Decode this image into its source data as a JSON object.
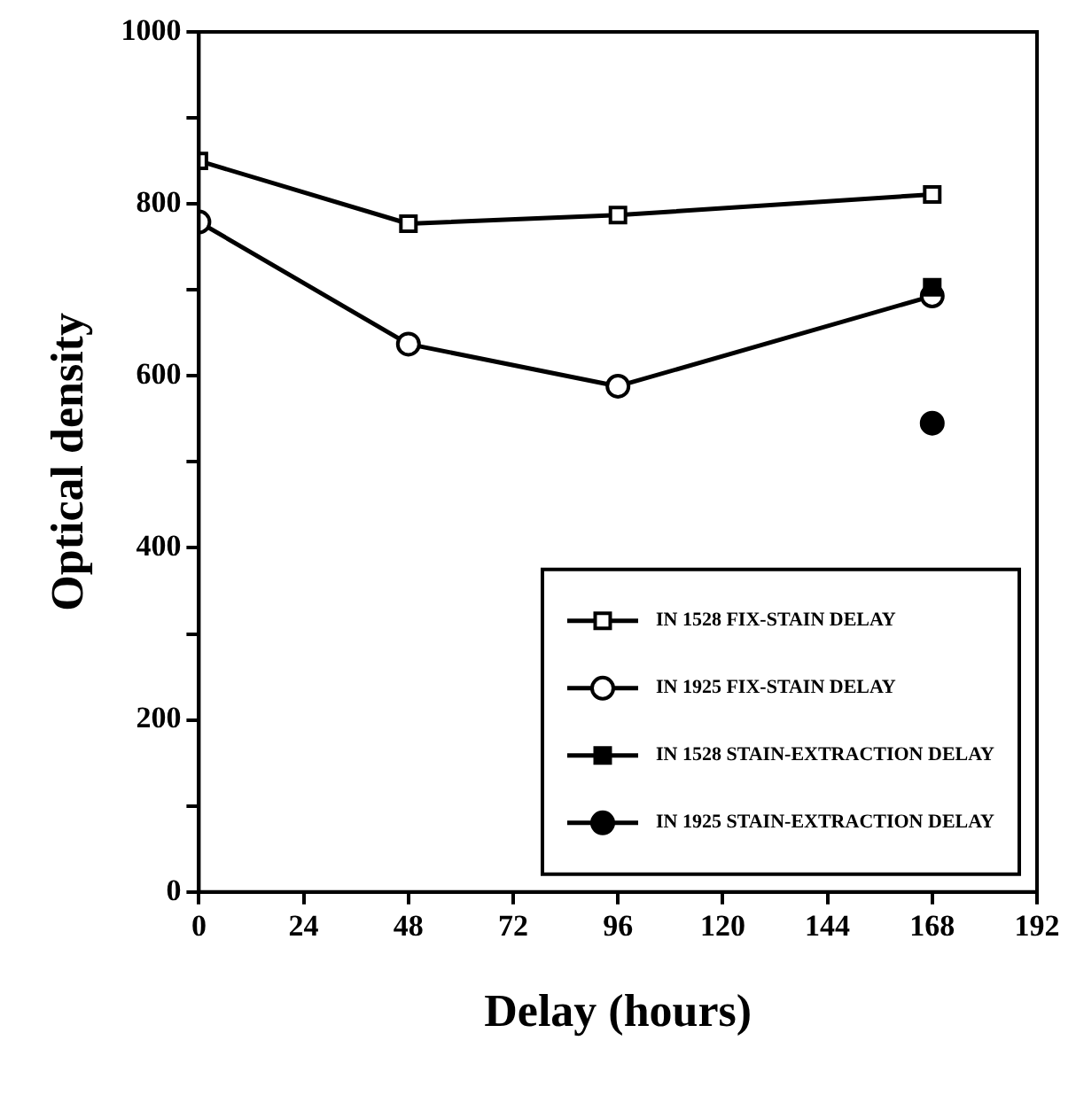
{
  "chart_data": {
    "type": "line",
    "xlabel": "Delay (hours)",
    "ylabel": "Optical density",
    "xlim": [
      0,
      192
    ],
    "xticks": [
      0,
      24,
      48,
      72,
      96,
      120,
      144,
      168,
      192
    ],
    "ylim": [
      0,
      1000
    ],
    "yticks": [
      0,
      {
        "value": 100,
        "label": null
      },
      200,
      {
        "value": 300,
        "label": null
      },
      400,
      {
        "value": 500,
        "label": null
      },
      600,
      {
        "value": 700,
        "label": null
      },
      800,
      {
        "value": 900,
        "label": null
      },
      1000
    ],
    "grid": false,
    "legend": "bottom right",
    "line_style": "solid",
    "series": [
      {
        "name": "IN 1528 FIX-STAIN DELAY",
        "marker": "square",
        "color": "#000000",
        "x": [
          0,
          48,
          96,
          168
        ],
        "values": [
          850,
          777,
          787,
          811
        ]
      },
      {
        "name": "IN 1925 FIX-STAIN DELAY",
        "marker": "circle",
        "color": "#000000",
        "x": [
          0,
          48,
          96,
          168
        ],
        "values": [
          779,
          637,
          588,
          693
        ]
      },
      {
        "name": "IN 1528 STAIN-EXTRACTION DELAY",
        "type": "scatter",
        "marker": "square",
        "color": "#000000",
        "x": [
          168
        ],
        "values": [
          703
        ]
      },
      {
        "name": "IN 1925 STAIN-EXTRACTION DELAY",
        "type": "scatter",
        "marker": "circle",
        "color": "#000000",
        "x": [
          168
        ],
        "values": [
          545
        ]
      }
    ]
  }
}
